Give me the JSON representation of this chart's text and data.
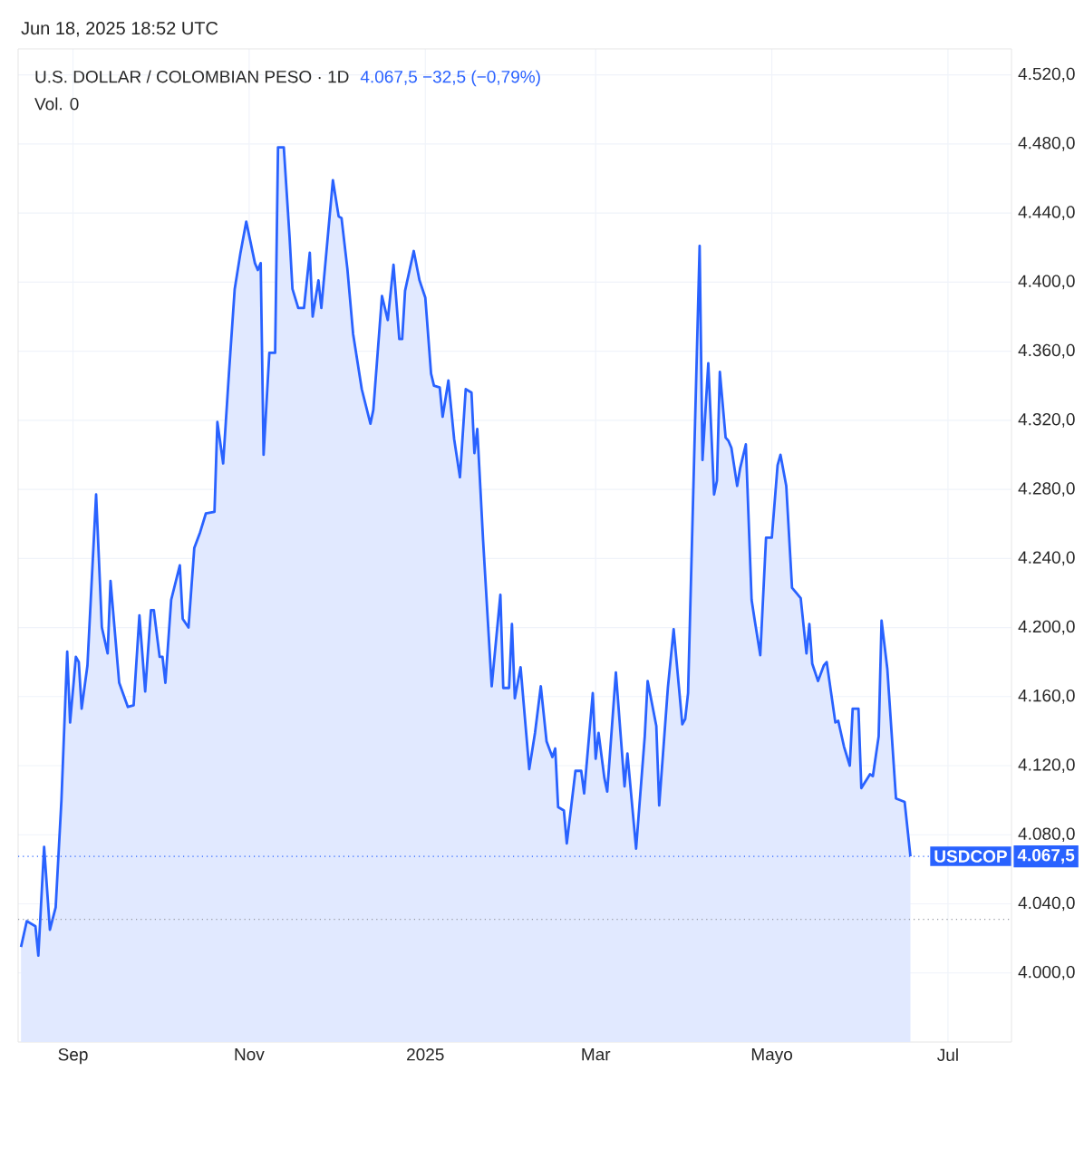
{
  "chart_data": {
    "type": "area",
    "title": "U.S. DOLLAR / COLOMBIAN PESO · 1D",
    "annotations": [
      "Jun 18, 2025 18:52 UTC",
      "4.067,5 −32,5 (−0,79%)",
      "Vol. 0",
      "4.067,5"
    ],
    "x": [
      "2024-08-14",
      "2024-08-16",
      "2024-08-19",
      "2024-08-20",
      "2024-08-22",
      "2024-08-24",
      "2024-08-26",
      "2024-08-28",
      "2024-08-30",
      "2024-08-31",
      "2024-09-02",
      "2024-09-03",
      "2024-09-04",
      "2024-09-06",
      "2024-09-09",
      "2024-09-11",
      "2024-09-13",
      "2024-09-14",
      "2024-09-17",
      "2024-09-20",
      "2024-09-22",
      "2024-09-24",
      "2024-09-26",
      "2024-09-28",
      "2024-09-29",
      "2024-10-01",
      "2024-10-02",
      "2024-10-03",
      "2024-10-05",
      "2024-10-08",
      "2024-10-09",
      "2024-10-11",
      "2024-10-13",
      "2024-10-15",
      "2024-10-17",
      "2024-10-20",
      "2024-10-21",
      "2024-10-23",
      "2024-10-25",
      "2024-10-27",
      "2024-10-29",
      "2024-10-31",
      "2024-11-03",
      "2024-11-04",
      "2024-11-05",
      "2024-11-06",
      "2024-11-08",
      "2024-11-10",
      "2024-11-11",
      "2024-11-13",
      "2024-11-15",
      "2024-11-16",
      "2024-11-18",
      "2024-11-20",
      "2024-11-22",
      "2024-11-23",
      "2024-11-25",
      "2024-11-26",
      "2024-11-30",
      "2024-12-02",
      "2024-12-03",
      "2024-12-05",
      "2024-12-07",
      "2024-12-10",
      "2024-12-13",
      "2024-12-14",
      "2024-12-17",
      "2024-12-19",
      "2024-12-21",
      "2024-12-23",
      "2024-12-24",
      "2024-12-25",
      "2024-12-28",
      "2024-12-30",
      "2025-01-01",
      "2025-01-03",
      "2025-01-04",
      "2025-01-06",
      "2025-01-07",
      "2025-01-09",
      "2025-01-11",
      "2025-01-13",
      "2025-01-15",
      "2025-01-17",
      "2025-01-18",
      "2025-01-19",
      "2025-01-21",
      "2025-01-24",
      "2025-01-27",
      "2025-01-28",
      "2025-01-30",
      "2025-01-31",
      "2025-02-01",
      "2025-02-03",
      "2025-02-06",
      "2025-02-08",
      "2025-02-10",
      "2025-02-12",
      "2025-02-14",
      "2025-02-15",
      "2025-02-16",
      "2025-02-18",
      "2025-02-19",
      "2025-02-22",
      "2025-02-24",
      "2025-02-25",
      "2025-02-28",
      "2025-03-01",
      "2025-03-02",
      "2025-03-04",
      "2025-03-05",
      "2025-03-08",
      "2025-03-11",
      "2025-03-12",
      "2025-03-15",
      "2025-03-18",
      "2025-03-19",
      "2025-03-22",
      "2025-03-23",
      "2025-03-26",
      "2025-03-28",
      "2025-03-31",
      "2025-04-01",
      "2025-04-02",
      "2025-04-06",
      "2025-04-07",
      "2025-04-09",
      "2025-04-11",
      "2025-04-12",
      "2025-04-13",
      "2025-04-15",
      "2025-04-16",
      "2025-04-17",
      "2025-04-19",
      "2025-04-20",
      "2025-04-22",
      "2025-04-24",
      "2025-04-25",
      "2025-04-27",
      "2025-04-29",
      "2025-05-01",
      "2025-05-03",
      "2025-05-04",
      "2025-05-06",
      "2025-05-08",
      "2025-05-11",
      "2025-05-13",
      "2025-05-14",
      "2025-05-15",
      "2025-05-17",
      "2025-05-19",
      "2025-05-20",
      "2025-05-23",
      "2025-05-24",
      "2025-05-26",
      "2025-05-28",
      "2025-05-29",
      "2025-05-31",
      "2025-06-01",
      "2025-06-04",
      "2025-06-05",
      "2025-06-07",
      "2025-06-08",
      "2025-06-10",
      "2025-06-13",
      "2025-06-16",
      "2025-06-18"
    ],
    "series": [
      {
        "color": "#2962ff",
        "values": [
          4015,
          4030,
          4027,
          4010,
          4073,
          4025,
          4038,
          4100,
          4186,
          4145,
          4183,
          4180,
          4153,
          4178,
          4277,
          4200,
          4185,
          4227,
          4168,
          4154,
          4155,
          4207,
          4163,
          4210,
          4210,
          4183,
          4183,
          4168,
          4216,
          4236,
          4205,
          4200,
          4246,
          4255,
          4266,
          4267,
          4319,
          4295,
          4347,
          4396,
          4417,
          4435,
          4411,
          4407,
          4411,
          4300,
          4359,
          4359,
          4478,
          4478,
          4426,
          4396,
          4385,
          4385,
          4417,
          4380,
          4401,
          4385,
          4459,
          4438,
          4437,
          4408,
          4370,
          4338,
          4318,
          4326,
          4392,
          4378,
          4410,
          4367,
          4367,
          4395,
          4418,
          4401,
          4391,
          4347,
          4340,
          4339,
          4322,
          4343,
          4309,
          4287,
          4338,
          4336,
          4301,
          4315,
          4251,
          4166,
          4219,
          4165,
          4165,
          4202,
          4159,
          4177,
          4118,
          4139,
          4166,
          4134,
          4125,
          4130,
          4096,
          4094,
          4075,
          4117,
          4117,
          4104,
          4162,
          4124,
          4139,
          4113,
          4105,
          4174,
          4108,
          4127,
          4072,
          4137,
          4169,
          4143,
          4097,
          4165,
          4199,
          4144,
          4147,
          4162,
          4421,
          4297,
          4353,
          4277,
          4285,
          4348,
          4310,
          4308,
          4304,
          4282,
          4292,
          4306,
          4216,
          4205,
          4184,
          4252,
          4252,
          4294,
          4300,
          4282,
          4223,
          4217,
          4185,
          4202,
          4179,
          4169,
          4178,
          4180,
          4145,
          4146,
          4131,
          4120,
          4153,
          4153,
          4107,
          4115,
          4114,
          4137,
          4204,
          4176,
          4101,
          4099,
          4067.5
        ]
      }
    ],
    "xlim": [
      "2024-08-13",
      "2025-07-23"
    ],
    "xticks": [
      {
        "value": "2024-09-01",
        "label": "Sep"
      },
      {
        "value": "2024-11-01",
        "label": "Nov"
      },
      {
        "value": "2025-01-01",
        "label": "2025"
      },
      {
        "value": "2025-03-01",
        "label": "Mar"
      },
      {
        "value": "2025-05-01",
        "label": "Mayo"
      },
      {
        "value": "2025-07-01",
        "label": "Jul"
      }
    ],
    "ylim": [
      3960,
      4535
    ],
    "yticks": [
      {
        "value": 4000,
        "label": "4.000,0"
      },
      {
        "value": 4040,
        "label": "4.040,0"
      },
      {
        "value": 4080,
        "label": "4.080,0"
      },
      {
        "value": 4120,
        "label": "4.120,0"
      },
      {
        "value": 4160,
        "label": "4.160,0"
      },
      {
        "value": 4200,
        "label": "4.200,0"
      },
      {
        "value": 4240,
        "label": "4.240,0"
      },
      {
        "value": 4280,
        "label": "4.280,0"
      },
      {
        "value": 4320,
        "label": "4.320,0"
      },
      {
        "value": 4360,
        "label": "4.360,0"
      },
      {
        "value": 4400,
        "label": "4.400,0"
      },
      {
        "value": 4440,
        "label": "4.440,0"
      },
      {
        "value": 4480,
        "label": "4.480,0"
      },
      {
        "value": 4520,
        "label": "4.520,0"
      }
    ],
    "ref_lines": [
      {
        "axis": "y",
        "value": 4067.5,
        "label": "USDCOP",
        "color": "#2962ff",
        "line_style": "dotted"
      },
      {
        "axis": "y",
        "value": 4031,
        "color": "#9598a1",
        "line_style": "dotted"
      }
    ],
    "grid": true,
    "marker": "none",
    "line_style": "solid"
  }
}
